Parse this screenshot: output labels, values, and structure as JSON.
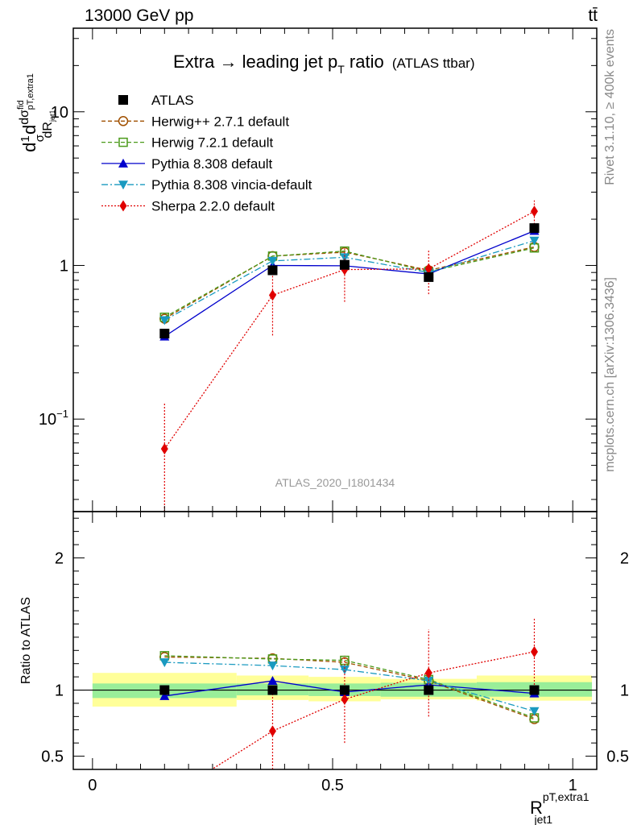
{
  "header": {
    "left_label": "13000 GeV pp",
    "right_label": "tt̄"
  },
  "chart_data": {
    "type": "line",
    "title": "Extra → leading jet p",
    "title_sub": "T",
    "title_suffix": " ratio",
    "title_note": "(ATLAS ttbar)",
    "analysis_id": "ATLAS_2020_I1801434",
    "side_label_top": "Rivet 3.1.10, ≥ 400k events",
    "side_label_bottom": "mcplots.cern.ch [arXiv:1306.3436]",
    "main": {
      "ylabel_parts": {
        "pre": "d",
        "num": "1",
        "den": "σ",
        "mid": "d",
        "num2": "dσ",
        "sup": "fid",
        "sub": "pT,extra1",
        "den2": "dR",
        "den2sub": "jet1"
      },
      "yscale": "log",
      "ylim": [
        0.025,
        35
      ],
      "ticks": [
        {
          "value": 0.1,
          "label": "10",
          "exp": "−1"
        },
        {
          "value": 1,
          "label": "1",
          "exp": ""
        },
        {
          "value": 10,
          "label": "10",
          "exp": ""
        }
      ]
    },
    "ratio": {
      "ylabel": "Ratio to ATLAS",
      "ylim": [
        0.4,
        2.35
      ],
      "ticks": [
        {
          "value": 0.5,
          "label": "0.5"
        },
        {
          "value": 1,
          "label": "1"
        },
        {
          "value": 2,
          "label": "2"
        }
      ],
      "band_inner": [
        {
          "x0": 0.0,
          "x1": 0.3,
          "lo": 0.94,
          "hi": 1.05
        },
        {
          "x0": 0.3,
          "x1": 0.45,
          "lo": 0.96,
          "hi": 1.05
        },
        {
          "x0": 0.45,
          "x1": 0.6,
          "lo": 0.955,
          "hi": 1.05
        },
        {
          "x0": 0.6,
          "x1": 0.8,
          "lo": 0.95,
          "hi": 1.055
        },
        {
          "x0": 0.8,
          "x1": 1.04,
          "lo": 0.95,
          "hi": 1.06
        }
      ],
      "band_outer": [
        {
          "x0": 0.0,
          "x1": 0.3,
          "lo": 0.875,
          "hi": 1.13
        },
        {
          "x0": 0.3,
          "x1": 0.45,
          "lo": 0.925,
          "hi": 1.11
        },
        {
          "x0": 0.45,
          "x1": 0.6,
          "lo": 0.915,
          "hi": 1.1
        },
        {
          "x0": 0.6,
          "x1": 0.8,
          "lo": 0.93,
          "hi": 1.085
        },
        {
          "x0": 0.8,
          "x1": 1.04,
          "lo": 0.92,
          "hi": 1.11
        }
      ]
    },
    "xlabel": {
      "base": "R",
      "sup": "pT,extra1",
      "sub": "jet1"
    },
    "xlim": [
      -0.04,
      1.05
    ],
    "xticks": [
      {
        "value": 0,
        "label": "0"
      },
      {
        "value": 0.5,
        "label": "0.5"
      },
      {
        "value": 1,
        "label": "1"
      }
    ],
    "x": [
      0.15,
      0.375,
      0.525,
      0.7,
      0.92
    ],
    "series": [
      {
        "name": "ATLAS",
        "style": "data",
        "color": "#000000",
        "dash": "",
        "marker": "square-filled",
        "values": [
          0.36,
          0.93,
          1.01,
          0.84,
          1.75
        ],
        "ratio": [
          1,
          1,
          1,
          1,
          1
        ],
        "err": [
          0.02,
          0.05,
          0.05,
          0.04,
          0.1
        ]
      },
      {
        "name": "Herwig++ 2.7.1 default",
        "color": "#a05000",
        "dash": "5,3",
        "marker": "circle-open",
        "values": [
          0.45,
          1.15,
          1.22,
          0.93,
          1.32
        ],
        "ratio": [
          1.25,
          1.24,
          1.21,
          1.07,
          0.78
        ]
      },
      {
        "name": "Herwig 7.2.1 default",
        "color": "#4a9a1a",
        "dash": "5,3",
        "marker": "square-open",
        "values": [
          0.46,
          1.15,
          1.24,
          0.91,
          1.3
        ],
        "ratio": [
          1.26,
          1.235,
          1.225,
          1.08,
          0.79
        ]
      },
      {
        "name": "Pythia 8.308 default",
        "color": "#0000cc",
        "dash": "",
        "marker": "triangle-up",
        "values": [
          0.345,
          1.0,
          0.995,
          0.88,
          1.68
        ],
        "ratio": [
          0.955,
          1.07,
          0.985,
          1.04,
          0.975
        ]
      },
      {
        "name": "Pythia 8.308 vincia-default",
        "color": "#1a9ac0",
        "dash": "8,3,2,3",
        "marker": "triangle-down",
        "values": [
          0.44,
          1.07,
          1.13,
          0.9,
          1.45
        ],
        "ratio": [
          1.21,
          1.185,
          1.155,
          1.07,
          0.84
        ]
      },
      {
        "name": "Sherpa 2.2.0 default",
        "color": "#e00000",
        "dash": "2,2",
        "marker": "diamond",
        "values": [
          0.064,
          0.64,
          0.94,
          0.95,
          2.25
        ],
        "ratio": [
          0.175,
          0.69,
          0.93,
          1.13,
          1.29
        ],
        "err_lo": [
          0.064,
          0.29,
          0.36,
          0.3,
          0.4
        ],
        "err_hi": [
          0.064,
          0.29,
          0.36,
          0.3,
          0.4
        ],
        "ratio_err_lo": [
          0.175,
          0.31,
          0.33,
          0.33,
          0.25
        ],
        "ratio_err_hi": [
          0.175,
          0.31,
          0.33,
          0.33,
          0.25
        ]
      }
    ]
  }
}
